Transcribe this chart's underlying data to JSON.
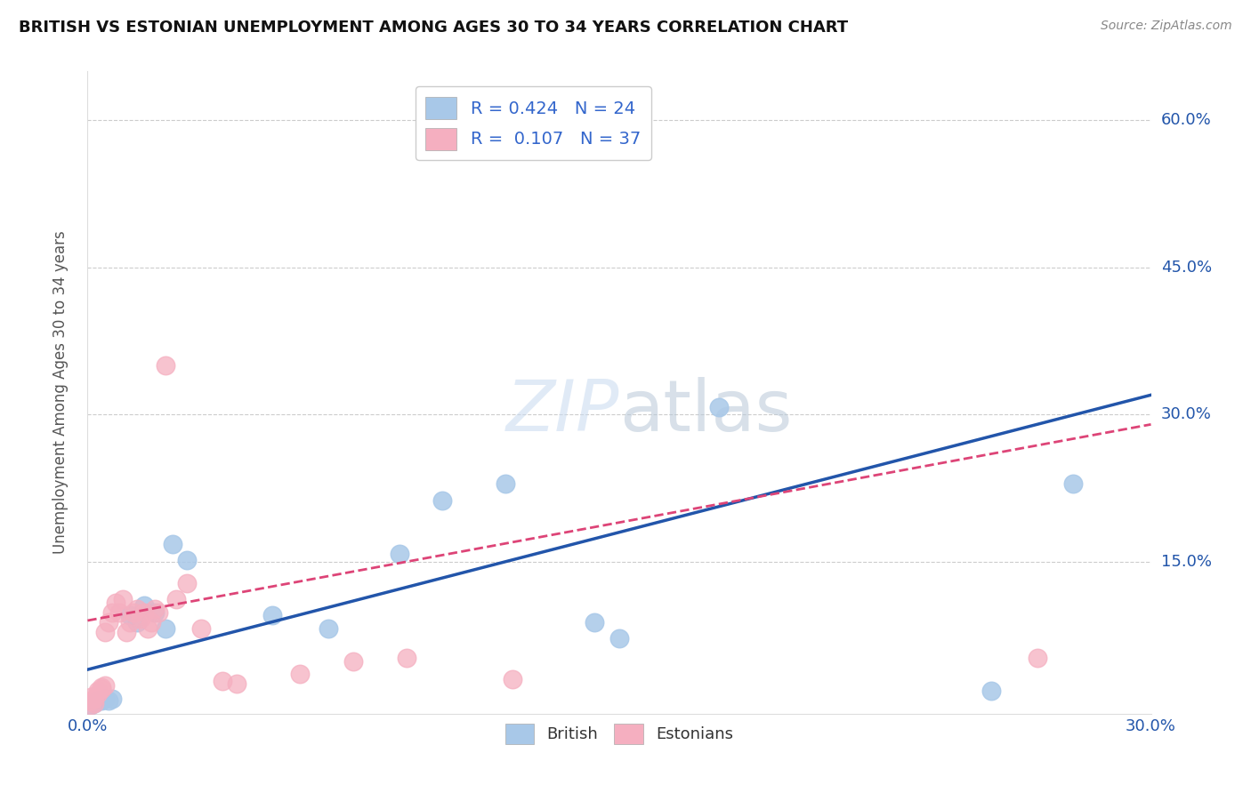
{
  "title": "BRITISH VS ESTONIAN UNEMPLOYMENT AMONG AGES 30 TO 34 YEARS CORRELATION CHART",
  "source": "Source: ZipAtlas.com",
  "ylabel": "Unemployment Among Ages 30 to 34 years",
  "xlim": [
    0.0,
    0.3
  ],
  "ylim": [
    -0.005,
    0.65
  ],
  "xticks": [
    0.0,
    0.3
  ],
  "xtick_labels": [
    "0.0%",
    "30.0%"
  ],
  "ytick_vals": [
    0.15,
    0.3,
    0.45,
    0.6
  ],
  "ytick_labels": [
    "15.0%",
    "30.0%",
    "45.0%",
    "60.0%"
  ],
  "british_color": "#a8c8e8",
  "estonian_color": "#f5afc0",
  "british_line_color": "#2255aa",
  "estonian_line_color": "#dd4477",
  "british_r": 0.424,
  "british_n": 24,
  "estonian_r": 0.107,
  "estonian_n": 37,
  "legend_color": "#3366cc",
  "watermark_text": "ZIPatlas",
  "british_x": [
    0.001,
    0.002,
    0.003,
    0.004,
    0.005,
    0.006,
    0.007,
    0.012,
    0.014,
    0.016,
    0.019,
    0.022,
    0.024,
    0.028,
    0.052,
    0.068,
    0.088,
    0.1,
    0.118,
    0.143,
    0.15,
    0.178,
    0.255,
    0.278
  ],
  "british_y": [
    0.004,
    0.006,
    0.008,
    0.008,
    0.01,
    0.008,
    0.01,
    0.095,
    0.088,
    0.105,
    0.098,
    0.082,
    0.168,
    0.152,
    0.095,
    0.082,
    0.158,
    0.212,
    0.23,
    0.088,
    0.072,
    0.308,
    0.018,
    0.23
  ],
  "estonian_x": [
    0.001,
    0.001,
    0.001,
    0.002,
    0.002,
    0.003,
    0.003,
    0.004,
    0.004,
    0.005,
    0.005,
    0.006,
    0.007,
    0.008,
    0.009,
    0.01,
    0.011,
    0.012,
    0.013,
    0.014,
    0.015,
    0.016,
    0.017,
    0.018,
    0.019,
    0.02,
    0.022,
    0.025,
    0.028,
    0.032,
    0.038,
    0.042,
    0.06,
    0.075,
    0.09,
    0.12,
    0.268
  ],
  "estonian_y": [
    0.004,
    0.008,
    0.012,
    0.006,
    0.01,
    0.016,
    0.018,
    0.02,
    0.022,
    0.024,
    0.078,
    0.088,
    0.098,
    0.108,
    0.098,
    0.112,
    0.078,
    0.088,
    0.098,
    0.102,
    0.092,
    0.098,
    0.082,
    0.088,
    0.102,
    0.098,
    0.35,
    0.112,
    0.128,
    0.082,
    0.028,
    0.026,
    0.036,
    0.048,
    0.052,
    0.03,
    0.052
  ]
}
